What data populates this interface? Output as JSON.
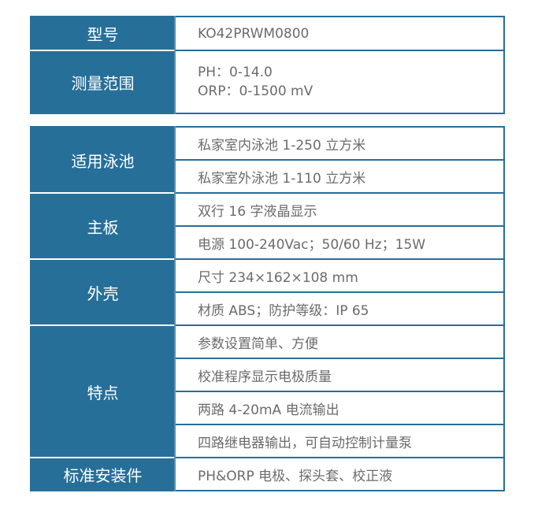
{
  "table1": [
    {
      "label": "型号",
      "values": [
        "KO42PRWM0800"
      ]
    },
    {
      "label": "测量范围",
      "values": [
        "PH：0-14.0",
        "ORP：0-1500 mV"
      ]
    }
  ],
  "table2": [
    {
      "label": "适用泳池",
      "values": [
        "私家室内泳池 1-250 立方米",
        "私家室外泳池 1-110 立方米"
      ]
    },
    {
      "label": "主板",
      "values": [
        "双行 16 字液晶显示",
        "电源 100-240Vac；50/60 Hz；15W"
      ]
    },
    {
      "label": "外壳",
      "values": [
        "尺寸 234×162×108 mm",
        "材质 ABS；防护等级：IP 65"
      ]
    },
    {
      "label": "特点",
      "values": [
        "参数设置简单、方便",
        "校准程序显示电极质量",
        "两路 4-20mA 电流输出",
        "四路继电器输出，可自动控制计量泵"
      ]
    },
    {
      "label": "标准安装件",
      "values": [
        "PH&ORP 电极、探头套、校正液"
      ]
    }
  ],
  "colors": {
    "header_bg": "#266f99",
    "text": "#6b6b6b"
  }
}
